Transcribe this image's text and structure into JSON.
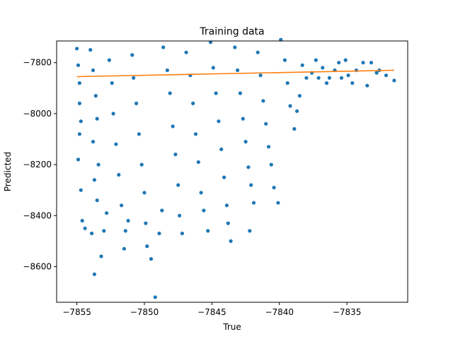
{
  "colors": {
    "scatter": "#1f77b4",
    "fit_line": "#ff7f0e",
    "axes": "#000000",
    "background": "#ffffff"
  },
  "chart_data": {
    "type": "scatter",
    "title": "Training data",
    "xlabel": "True",
    "ylabel": "Predicted",
    "xlim": [
      -7856.5,
      -7830.5
    ],
    "ylim": [
      -8740,
      -7715
    ],
    "xticks": [
      -7855,
      -7850,
      -7845,
      -7840,
      -7835
    ],
    "xtick_labels": [
      "−7855",
      "−7850",
      "−7845",
      "−7840",
      "−7835"
    ],
    "yticks": [
      -8600,
      -8400,
      -8200,
      -8000,
      -7800
    ],
    "ytick_labels": [
      "−8600",
      "−8400",
      "−8200",
      "−8000",
      "−7800"
    ],
    "grid": false,
    "legend": "none",
    "series": [
      {
        "kind": "scatter",
        "color": "#1f77b4",
        "points": [
          [
            -7855.0,
            -7745
          ],
          [
            -7854.9,
            -7810
          ],
          [
            -7854.8,
            -7880
          ],
          [
            -7854.8,
            -7960
          ],
          [
            -7854.7,
            -8030
          ],
          [
            -7854.8,
            -8080
          ],
          [
            -7854.9,
            -8180
          ],
          [
            -7854.7,
            -8300
          ],
          [
            -7854.6,
            -8420
          ],
          [
            -7854.4,
            -8450
          ],
          [
            -7854.0,
            -7750
          ],
          [
            -7853.8,
            -7830
          ],
          [
            -7853.6,
            -7930
          ],
          [
            -7853.5,
            -8020
          ],
          [
            -7853.8,
            -8110
          ],
          [
            -7853.4,
            -8200
          ],
          [
            -7853.7,
            -8260
          ],
          [
            -7853.5,
            -8340
          ],
          [
            -7853.9,
            -8470
          ],
          [
            -7853.7,
            -8630
          ],
          [
            -7853.2,
            -8560
          ],
          [
            -7853.0,
            -8460
          ],
          [
            -7852.8,
            -8390
          ],
          [
            -7852.6,
            -7790
          ],
          [
            -7852.4,
            -7880
          ],
          [
            -7852.3,
            -8000
          ],
          [
            -7852.1,
            -8120
          ],
          [
            -7851.9,
            -8240
          ],
          [
            -7851.7,
            -8360
          ],
          [
            -7851.5,
            -8530
          ],
          [
            -7851.4,
            -8460
          ],
          [
            -7851.2,
            -8420
          ],
          [
            -7850.9,
            -7770
          ],
          [
            -7850.8,
            -7860
          ],
          [
            -7850.6,
            -7960
          ],
          [
            -7850.4,
            -8080
          ],
          [
            -7850.2,
            -8200
          ],
          [
            -7850.0,
            -8310
          ],
          [
            -7849.9,
            -8430
          ],
          [
            -7849.8,
            -8520
          ],
          [
            -7849.5,
            -8570
          ],
          [
            -7849.2,
            -8720
          ],
          [
            -7848.9,
            -8470
          ],
          [
            -7848.7,
            -8380
          ],
          [
            -7848.6,
            -7740
          ],
          [
            -7848.3,
            -7830
          ],
          [
            -7848.1,
            -7920
          ],
          [
            -7847.9,
            -8050
          ],
          [
            -7847.7,
            -8160
          ],
          [
            -7847.5,
            -8280
          ],
          [
            -7847.4,
            -8400
          ],
          [
            -7847.2,
            -8470
          ],
          [
            -7846.9,
            -7760
          ],
          [
            -7846.6,
            -7850
          ],
          [
            -7846.4,
            -7960
          ],
          [
            -7846.2,
            -8080
          ],
          [
            -7846.0,
            -8190
          ],
          [
            -7845.8,
            -8310
          ],
          [
            -7845.6,
            -8380
          ],
          [
            -7845.3,
            -8460
          ],
          [
            -7845.1,
            -7720
          ],
          [
            -7844.9,
            -7820
          ],
          [
            -7844.7,
            -7920
          ],
          [
            -7844.5,
            -8030
          ],
          [
            -7844.3,
            -8140
          ],
          [
            -7844.1,
            -8250
          ],
          [
            -7843.9,
            -8360
          ],
          [
            -7843.8,
            -8430
          ],
          [
            -7843.6,
            -8500
          ],
          [
            -7843.3,
            -7740
          ],
          [
            -7843.1,
            -7830
          ],
          [
            -7842.9,
            -7920
          ],
          [
            -7842.7,
            -8020
          ],
          [
            -7842.5,
            -8110
          ],
          [
            -7842.3,
            -8210
          ],
          [
            -7842.1,
            -8280
          ],
          [
            -7842.2,
            -8460
          ],
          [
            -7841.9,
            -8350
          ],
          [
            -7841.6,
            -7760
          ],
          [
            -7841.4,
            -7850
          ],
          [
            -7841.2,
            -7950
          ],
          [
            -7841.0,
            -8040
          ],
          [
            -7840.8,
            -8130
          ],
          [
            -7840.6,
            -8200
          ],
          [
            -7840.4,
            -8290
          ],
          [
            -7840.1,
            -8350
          ],
          [
            -7839.9,
            -7710
          ],
          [
            -7839.6,
            -7790
          ],
          [
            -7839.4,
            -7880
          ],
          [
            -7839.2,
            -7970
          ],
          [
            -7838.9,
            -8060
          ],
          [
            -7838.7,
            -7990
          ],
          [
            -7838.5,
            -7930
          ],
          [
            -7838.3,
            -7810
          ],
          [
            -7838.0,
            -7860
          ],
          [
            -7837.6,
            -7840
          ],
          [
            -7837.3,
            -7790
          ],
          [
            -7837.1,
            -7860
          ],
          [
            -7836.8,
            -7820
          ],
          [
            -7836.5,
            -7880
          ],
          [
            -7836.3,
            -7860
          ],
          [
            -7835.9,
            -7830
          ],
          [
            -7835.6,
            -7800
          ],
          [
            -7835.4,
            -7860
          ],
          [
            -7835.1,
            -7790
          ],
          [
            -7834.9,
            -7850
          ],
          [
            -7834.6,
            -7880
          ],
          [
            -7834.3,
            -7830
          ],
          [
            -7833.8,
            -7800
          ],
          [
            -7833.5,
            -7890
          ],
          [
            -7833.2,
            -7800
          ],
          [
            -7832.8,
            -7840
          ],
          [
            -7832.6,
            -7830
          ],
          [
            -7832.1,
            -7850
          ],
          [
            -7831.5,
            -7870
          ]
        ]
      },
      {
        "kind": "line",
        "color": "#ff7f0e",
        "points": [
          [
            -7855.0,
            -7855
          ],
          [
            -7831.5,
            -7830
          ]
        ]
      }
    ]
  }
}
